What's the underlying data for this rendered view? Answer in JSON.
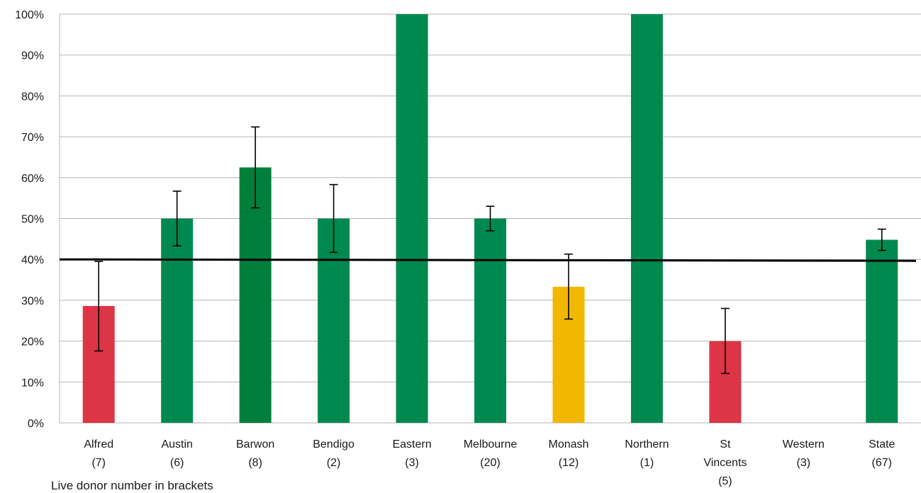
{
  "chart_data": {
    "type": "bar",
    "categories": [
      [
        "Alfred",
        "(7)"
      ],
      [
        "Austin",
        "(6)"
      ],
      [
        "Barwon",
        "(8)"
      ],
      [
        "Bendigo",
        "(2)"
      ],
      [
        "Eastern",
        "(3)"
      ],
      [
        "Melbourne",
        "(20)"
      ],
      [
        "Monash",
        "(12)"
      ],
      [
        "Northern",
        "(1)"
      ],
      [
        "St",
        "Vincents",
        "(5)"
      ],
      [
        "Western",
        "(3)"
      ],
      [
        "State",
        "(67)"
      ]
    ],
    "values": [
      28.6,
      50,
      62.5,
      50,
      100,
      50,
      33.3,
      100,
      20,
      null,
      44.8
    ],
    "error_low": [
      17.6,
      43.3,
      52.6,
      41.7,
      null,
      47,
      25.4,
      null,
      12.1,
      null,
      42.2
    ],
    "error_high": [
      39.5,
      56.7,
      72.4,
      58.3,
      null,
      53,
      41.3,
      null,
      28,
      null,
      47.4
    ],
    "bar_colors": [
      "#dc3545",
      "#00894f",
      "#007f3c",
      "#00894f",
      "#00894f",
      "#00894f",
      "#f2b700",
      "#00894f",
      "#dc3545",
      null,
      "#00894f"
    ],
    "reference_line": 40,
    "ylim": [
      0,
      100
    ],
    "yticks": [
      "0%",
      "10%",
      "20%",
      "30%",
      "40%",
      "50%",
      "60%",
      "70%",
      "80%",
      "90%",
      "100%"
    ],
    "grid": true,
    "footnote": "Live donor number in brackets"
  }
}
